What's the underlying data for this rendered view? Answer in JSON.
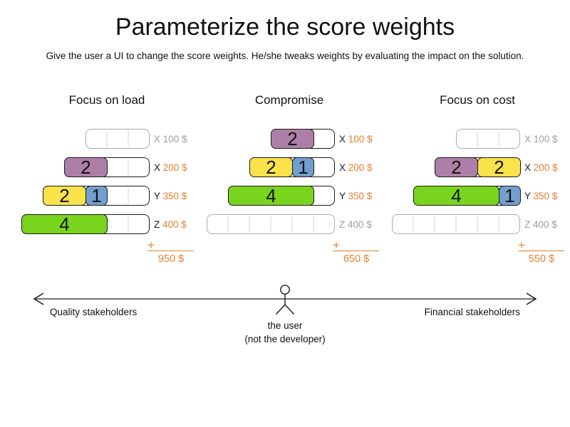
{
  "title": "Parameterize the score weights",
  "subtitle": "Give the user a UI to change the score weights. He/she tweaks weights by evaluating the impact on the solution.",
  "plus_sign": "+",
  "colors": {
    "purple": "#ad7fa8",
    "yellow": "#fae24b",
    "blue": "#729fcf",
    "green": "#79d41e",
    "orange": "#e5802f",
    "inactive_gray": "#9e9e9e",
    "active_text": "#1a1a1a",
    "axis_line": "#737373"
  },
  "panels": [
    {
      "heading": "Focus on load",
      "total": "950 $",
      "rows": [
        {
          "letter": "X",
          "cost": "100 $",
          "capacity": 3,
          "active": false,
          "blocks": []
        },
        {
          "letter": "X",
          "cost": "200 $",
          "capacity": 4,
          "active": true,
          "blocks": [
            {
              "value": "2",
              "color": "purple",
              "span": 2
            }
          ]
        },
        {
          "letter": "Y",
          "cost": "350 $",
          "capacity": 5,
          "active": true,
          "blocks": [
            {
              "value": "2",
              "color": "yellow",
              "span": 2
            },
            {
              "value": "1",
              "color": "blue",
              "span": 1
            }
          ]
        },
        {
          "letter": "Z",
          "cost": "400 $",
          "capacity": 6,
          "active": true,
          "blocks": [
            {
              "value": "4",
              "color": "green",
              "span": 4
            }
          ]
        }
      ]
    },
    {
      "heading": "Compromise",
      "total": "650 $",
      "rows": [
        {
          "letter": "X",
          "cost": "100 $",
          "capacity": 3,
          "active": true,
          "blocks": [
            {
              "value": "2",
              "color": "purple",
              "span": 2
            }
          ]
        },
        {
          "letter": "X",
          "cost": "200 $",
          "capacity": 4,
          "active": true,
          "blocks": [
            {
              "value": "2",
              "color": "yellow",
              "span": 2
            },
            {
              "value": "1",
              "color": "blue",
              "span": 1
            }
          ]
        },
        {
          "letter": "Y",
          "cost": "350 $",
          "capacity": 5,
          "active": true,
          "blocks": [
            {
              "value": "4",
              "color": "green",
              "span": 4
            }
          ]
        },
        {
          "letter": "Z",
          "cost": "400 $",
          "capacity": 6,
          "active": false,
          "blocks": []
        }
      ]
    },
    {
      "heading": "Focus on cost",
      "total": "550 $",
      "rows": [
        {
          "letter": "X",
          "cost": "100 $",
          "capacity": 3,
          "active": false,
          "blocks": []
        },
        {
          "letter": "X",
          "cost": "200 $",
          "capacity": 4,
          "active": true,
          "blocks": [
            {
              "value": "2",
              "color": "purple",
              "span": 2
            },
            {
              "value": "2",
              "color": "yellow",
              "span": 2
            }
          ]
        },
        {
          "letter": "Y",
          "cost": "350 $",
          "capacity": 5,
          "active": true,
          "blocks": [
            {
              "value": "4",
              "color": "green",
              "span": 4
            },
            {
              "value": "1",
              "color": "blue",
              "span": 1
            }
          ]
        },
        {
          "letter": "Z",
          "cost": "400 $",
          "capacity": 6,
          "active": false,
          "blocks": []
        }
      ]
    }
  ],
  "axis": {
    "left_label": "Quality stakeholders",
    "right_label": "Financial stakeholders"
  },
  "user": {
    "line1": "the user",
    "line2": "(not the developer)"
  }
}
